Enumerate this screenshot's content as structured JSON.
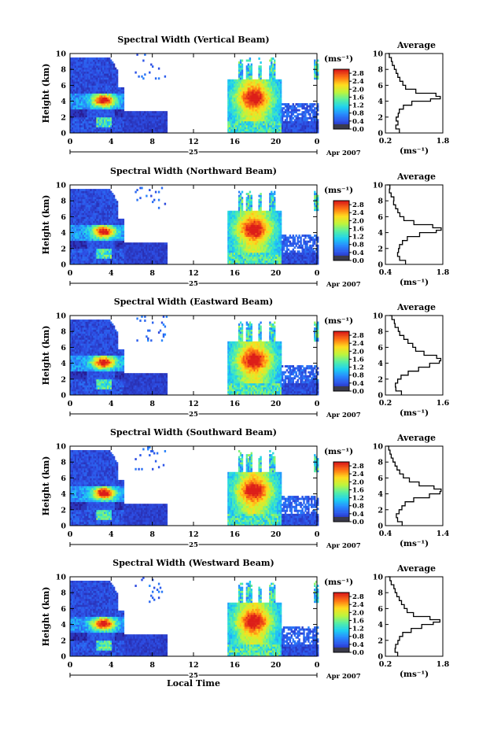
{
  "chart_data": [
    {
      "type": "heatmap",
      "title": "Spectral Width (Vertical Beam)",
      "ylabel": "Height (km)",
      "xlabel": "",
      "x_ticks": [
        "0",
        "4",
        "8",
        "12",
        "16",
        "20",
        "0"
      ],
      "y_ticks": [
        "0",
        "2",
        "4",
        "6",
        "8",
        "10"
      ],
      "xlim": [
        0,
        24
      ],
      "ylim": [
        0,
        10
      ],
      "date_day": "25",
      "date_month": "Apr 2007",
      "colorbar": {
        "unit": "(ms⁻¹)",
        "ticks": [
          "0.0",
          "0.4",
          "0.8",
          "1.2",
          "1.6",
          "2.0",
          "2.4",
          "2.8"
        ],
        "range": [
          0,
          3.0
        ]
      },
      "profile": {
        "title": "Average",
        "unit": "(ms⁻¹)",
        "x_ticks": [
          "0.2",
          "1.8"
        ],
        "xlim": [
          0.2,
          1.8
        ],
        "y_ticks": [
          "0",
          "2",
          "4",
          "6",
          "8",
          "10"
        ],
        "ylim": [
          0,
          10
        ],
        "heights": [
          0.0,
          0.5,
          1.0,
          1.5,
          2.0,
          2.5,
          3.0,
          3.5,
          4.0,
          4.3,
          4.6,
          5.0,
          5.5,
          6.0,
          6.5,
          7.0,
          7.5,
          8.0,
          8.5,
          9.0,
          9.5,
          10.0
        ],
        "values": [
          0.6,
          0.5,
          0.55,
          0.5,
          0.55,
          0.6,
          0.7,
          0.95,
          1.45,
          1.75,
          1.6,
          1.05,
          0.75,
          0.7,
          0.6,
          0.55,
          0.5,
          0.45,
          0.4,
          0.35,
          0.3,
          0.25
        ]
      }
    },
    {
      "type": "heatmap",
      "title": "Spectral Width (Northward Beam)",
      "ylabel": "Height (km)",
      "xlabel": "",
      "x_ticks": [
        "0",
        "4",
        "8",
        "12",
        "16",
        "20",
        "0"
      ],
      "y_ticks": [
        "0",
        "2",
        "4",
        "6",
        "8",
        "10"
      ],
      "xlim": [
        0,
        24
      ],
      "ylim": [
        0,
        10
      ],
      "date_day": "25",
      "date_month": "Apr 2007",
      "colorbar": {
        "unit": "(ms⁻¹)",
        "ticks": [
          "0.0",
          "0.4",
          "0.8",
          "1.2",
          "1.6",
          "2.0",
          "2.4",
          "2.8"
        ],
        "range": [
          0,
          3.0
        ]
      },
      "profile": {
        "title": "Average",
        "unit": "(ms⁻¹)",
        "x_ticks": [
          "0.4",
          "1.8"
        ],
        "xlim": [
          0.4,
          1.8
        ],
        "heights": [
          0.0,
          0.5,
          1.0,
          1.5,
          2.0,
          2.5,
          3.0,
          3.5,
          4.0,
          4.3,
          4.6,
          5.0,
          5.5,
          6.0,
          6.5,
          7.0,
          7.5,
          8.0,
          8.5,
          9.0,
          9.5,
          10.0
        ],
        "values": [
          0.9,
          0.75,
          0.7,
          0.7,
          0.75,
          0.8,
          0.95,
          1.25,
          1.65,
          1.75,
          1.55,
          1.1,
          0.85,
          0.75,
          0.7,
          0.65,
          0.6,
          0.6,
          0.55,
          0.5,
          0.5,
          0.45
        ],
        "y_ticks": [
          "0",
          "2",
          "4",
          "6",
          "8",
          "10"
        ],
        "ylim": [
          0,
          10
        ]
      }
    },
    {
      "type": "heatmap",
      "title": "Spectral Width (Eastward Beam)",
      "ylabel": "Height (km)",
      "xlabel": "",
      "x_ticks": [
        "0",
        "4",
        "8",
        "12",
        "16",
        "20",
        "0"
      ],
      "y_ticks": [
        "0",
        "2",
        "4",
        "6",
        "8",
        "10"
      ],
      "xlim": [
        0,
        24
      ],
      "ylim": [
        0,
        10
      ],
      "date_day": "25",
      "date_month": "Apr 2007",
      "colorbar": {
        "unit": "(ms⁻¹)",
        "ticks": [
          "0.0",
          "0.4",
          "0.8",
          "1.2",
          "1.6",
          "2.0",
          "2.4",
          "2.8"
        ],
        "range": [
          0,
          3.0
        ]
      },
      "profile": {
        "title": "Average",
        "unit": "(ms⁻¹)",
        "x_ticks": [
          "0.2",
          "1.6"
        ],
        "xlim": [
          0.2,
          1.6
        ],
        "heights": [
          0.0,
          0.5,
          1.0,
          1.5,
          2.0,
          2.5,
          3.0,
          3.5,
          4.0,
          4.3,
          4.6,
          5.0,
          5.5,
          6.0,
          6.5,
          7.0,
          7.5,
          8.0,
          8.5,
          9.0,
          9.5,
          10.0
        ],
        "values": [
          0.6,
          0.45,
          0.45,
          0.5,
          0.6,
          0.75,
          1.0,
          1.3,
          1.5,
          1.55,
          1.45,
          1.15,
          0.95,
          0.85,
          0.75,
          0.65,
          0.55,
          0.5,
          0.45,
          0.4,
          0.35,
          0.3
        ],
        "y_ticks": [
          "0",
          "2",
          "4",
          "6",
          "8",
          "10"
        ],
        "ylim": [
          0,
          10
        ]
      }
    },
    {
      "type": "heatmap",
      "title": "Spectral Width (Southward Beam)",
      "ylabel": "Height (km)",
      "xlabel": "",
      "x_ticks": [
        "0",
        "4",
        "8",
        "12",
        "16",
        "20",
        "0"
      ],
      "y_ticks": [
        "0",
        "2",
        "4",
        "6",
        "8",
        "10"
      ],
      "xlim": [
        0,
        24
      ],
      "ylim": [
        0,
        10
      ],
      "date_day": "25",
      "date_month": "Apr 2007",
      "colorbar": {
        "unit": "(ms⁻¹)",
        "ticks": [
          "0.0",
          "0.4",
          "0.8",
          "1.2",
          "1.6",
          "2.0",
          "2.4",
          "2.8"
        ],
        "range": [
          0,
          3.0
        ]
      },
      "profile": {
        "title": "Average",
        "unit": "(ms⁻¹)",
        "x_ticks": [
          "0.4",
          "1.4"
        ],
        "xlim": [
          0.4,
          1.4
        ],
        "heights": [
          0.0,
          0.5,
          1.0,
          1.5,
          2.0,
          2.5,
          3.0,
          3.5,
          4.0,
          4.3,
          4.6,
          5.0,
          5.5,
          6.0,
          6.5,
          7.0,
          7.5,
          8.0,
          8.5,
          9.0,
          9.5,
          10.0
        ],
        "values": [
          0.7,
          0.6,
          0.6,
          0.62,
          0.68,
          0.75,
          0.9,
          1.15,
          1.35,
          1.38,
          1.25,
          1.0,
          0.8,
          0.72,
          0.65,
          0.6,
          0.57,
          0.55,
          0.52,
          0.48,
          0.45,
          0.42
        ],
        "y_ticks": [
          "0",
          "2",
          "4",
          "6",
          "8",
          "10"
        ],
        "ylim": [
          0,
          10
        ]
      }
    },
    {
      "type": "heatmap",
      "title": "Spectral Width (Westward Beam)",
      "ylabel": "Height (km)",
      "xlabel": "Local Time",
      "x_ticks": [
        "0",
        "4",
        "8",
        "12",
        "16",
        "20",
        "0"
      ],
      "y_ticks": [
        "0",
        "2",
        "4",
        "6",
        "8",
        "10"
      ],
      "xlim": [
        0,
        24
      ],
      "ylim": [
        0,
        10
      ],
      "date_day": "25",
      "date_month": "Apr 2007",
      "colorbar": {
        "unit": "(ms⁻¹)",
        "ticks": [
          "0.0",
          "0.4",
          "0.8",
          "1.2",
          "1.6",
          "2.0",
          "2.4",
          "2.8"
        ],
        "range": [
          0,
          3.0
        ]
      },
      "profile": {
        "title": "Average",
        "unit": "(ms⁻¹)",
        "x_ticks": [
          "0.2",
          "1.8"
        ],
        "xlim": [
          0.2,
          1.8
        ],
        "heights": [
          0.0,
          0.5,
          1.0,
          1.5,
          2.0,
          2.5,
          3.0,
          3.5,
          4.0,
          4.3,
          4.6,
          5.0,
          5.5,
          6.0,
          6.5,
          7.0,
          7.5,
          8.0,
          8.5,
          9.0,
          9.5,
          10.0
        ],
        "values": [
          0.55,
          0.45,
          0.5,
          0.55,
          0.6,
          0.7,
          0.9,
          1.2,
          1.55,
          1.7,
          1.45,
          1.0,
          0.8,
          0.72,
          0.65,
          0.58,
          0.52,
          0.48,
          0.42,
          0.38,
          0.32,
          0.28
        ],
        "y_ticks": [
          "0",
          "2",
          "4",
          "6",
          "8",
          "10"
        ],
        "ylim": [
          0,
          10
        ]
      }
    }
  ]
}
